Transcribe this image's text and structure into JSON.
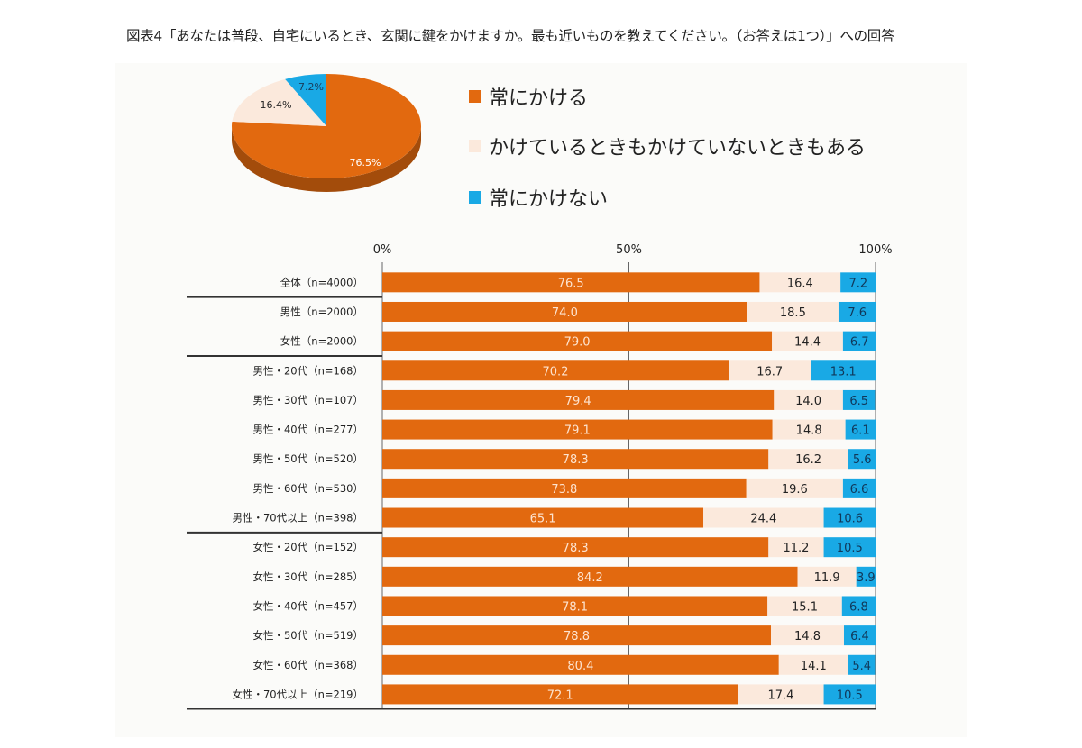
{
  "title": "図表4「あなたは普段、自宅にいるとき、玄関に鍵をかけますか。最も近いものを教えてください。（お答えは1つ）」への回答",
  "chart_data": [
    {
      "type": "pie",
      "style": "3d",
      "labels": [
        "常にかける",
        "かけているときもかけていないときもある",
        "常にかけない"
      ],
      "values": [
        76.5,
        16.4,
        7.2
      ],
      "data_labels": [
        "76.5%",
        "16.4%",
        "7.2%"
      ],
      "colors": [
        "#e2690f",
        "#fbe9dc",
        "#19a9e5"
      ],
      "legend_position": "right"
    },
    {
      "type": "bar",
      "orientation": "horizontal",
      "stacked": "percent",
      "xlim": [
        0,
        100
      ],
      "x_ticks": [
        "0%",
        "50%",
        "100%"
      ],
      "grid": true,
      "categories": [
        "全体（n=4000）",
        "男性（n=2000）",
        "女性（n=2000）",
        "男性・20代（n=168）",
        "男性・30代（n=107）",
        "男性・40代（n=277）",
        "男性・50代（n=520）",
        "男性・60代（n=530）",
        "男性・70代以上（n=398）",
        "女性・20代（n=152）",
        "女性・30代（n=285）",
        "女性・40代（n=457）",
        "女性・50代（n=519）",
        "女性・60代（n=368）",
        "女性・70代以上（n=219）"
      ],
      "group_separators_after": [
        0,
        2,
        8
      ],
      "series": [
        {
          "name": "常にかける",
          "color": "#e2690f",
          "values": [
            76.5,
            74.0,
            79.0,
            70.2,
            79.4,
            79.1,
            78.3,
            73.8,
            65.1,
            78.3,
            84.2,
            78.1,
            78.8,
            80.4,
            72.1
          ]
        },
        {
          "name": "かけているときもかけていないときもある",
          "color": "#fbe9dc",
          "values": [
            16.4,
            18.5,
            14.4,
            16.7,
            14.0,
            14.8,
            16.2,
            19.6,
            24.4,
            11.2,
            11.9,
            15.1,
            14.8,
            14.1,
            17.4
          ]
        },
        {
          "name": "常にかけない",
          "color": "#19a9e5",
          "values": [
            7.2,
            7.6,
            6.7,
            13.1,
            6.5,
            6.1,
            5.6,
            6.6,
            10.6,
            10.5,
            3.9,
            6.8,
            6.4,
            5.4,
            10.5
          ]
        }
      ]
    }
  ]
}
